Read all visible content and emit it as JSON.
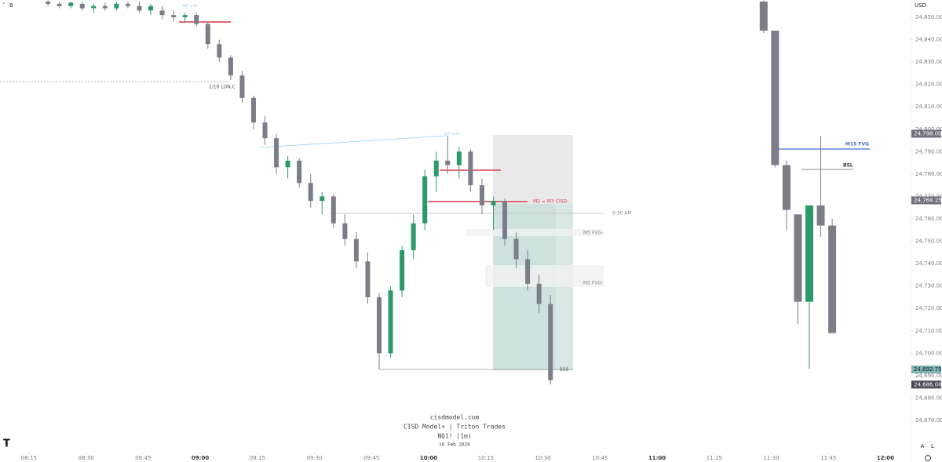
{
  "chart_data": {
    "type": "candlestick",
    "currency": "USD",
    "collapse_label": "6",
    "watermark": [
      "cisdmodel.com",
      "CISD Model+ | Triton Trades",
      "NQ1! (1m)",
      "16 Feb 2026"
    ],
    "scale_buttons": [
      "A",
      "L"
    ],
    "up_color": "#2b9a68",
    "down_color": "#7b7d88",
    "xlim": [
      487.4,
      726.6
    ],
    "ylim": [
      24661.6,
      24857.7
    ],
    "xticks": [
      {
        "value": 495,
        "label": "08:15"
      },
      {
        "value": 510,
        "label": "08:30"
      },
      {
        "value": 525,
        "label": "08:45"
      },
      {
        "value": 540,
        "label": "09:00"
      },
      {
        "value": 555,
        "label": "09:15"
      },
      {
        "value": 570,
        "label": "09:30"
      },
      {
        "value": 585,
        "label": "09:45"
      },
      {
        "value": 600,
        "label": "10:00"
      },
      {
        "value": 615,
        "label": "10:15"
      },
      {
        "value": 630,
        "label": "10:30"
      },
      {
        "value": 645,
        "label": "10:45"
      },
      {
        "value": 660,
        "label": "11:00"
      },
      {
        "value": 675,
        "label": "11:15"
      },
      {
        "value": 690,
        "label": "11:30"
      },
      {
        "value": 705,
        "label": "11:45"
      },
      {
        "value": 720,
        "label": "12:00"
      }
    ],
    "yticks": [
      {
        "value": 24670,
        "label": "24,670.00"
      },
      {
        "value": 24680,
        "label": "24,680.00"
      },
      {
        "value": 24690,
        "label": "24,690.00"
      },
      {
        "value": 24700,
        "label": "24,700.00"
      },
      {
        "value": 24710,
        "label": "24,710.00"
      },
      {
        "value": 24720,
        "label": "24,720.00"
      },
      {
        "value": 24730,
        "label": "24,730.00"
      },
      {
        "value": 24740,
        "label": "24,740.00"
      },
      {
        "value": 24750,
        "label": "24,750.00"
      },
      {
        "value": 24760,
        "label": "24,760.00"
      },
      {
        "value": 24770,
        "label": "24,770.00"
      },
      {
        "value": 24780,
        "label": "24,780.00"
      },
      {
        "value": 24790,
        "label": "24,790.00"
      },
      {
        "value": 24800,
        "label": "24,800.00"
      },
      {
        "value": 24810,
        "label": "24,810.00"
      },
      {
        "value": 24820,
        "label": "24,820.00"
      },
      {
        "value": 24830,
        "label": "24,830.00"
      },
      {
        "value": 24840,
        "label": "24,840.00"
      },
      {
        "value": 24850,
        "label": "24,850.00"
      }
    ],
    "price_tags": [
      {
        "value": 24798,
        "label": "24,798.00",
        "color": "#6e717c"
      },
      {
        "value": 24768.25,
        "label": "24,768.25",
        "color": "#6e717c"
      },
      {
        "value": 24692.75,
        "label": "24,692.75",
        "color": "#7fb5ae"
      },
      {
        "value": 24686,
        "label": "24,686.00",
        "color": "#4a4d57"
      }
    ],
    "annotations": [
      "2/16 LON.C",
      "M2 = M3 CISD-",
      "9:30 AM",
      "M5 FVG-",
      "M5 FVG-",
      "M15 FVG",
      "BSL",
      "$$$",
      "SMT w ES",
      "SMT w ES"
    ],
    "candles": {
      "x": [
        500,
        503,
        506,
        509,
        512,
        515,
        518,
        521,
        524,
        527,
        530,
        533,
        536,
        539,
        542,
        545,
        548,
        551,
        554,
        557,
        560,
        563,
        566,
        569,
        572,
        575,
        578,
        581,
        584,
        587,
        590,
        593,
        596,
        599,
        602,
        605,
        608,
        611,
        614,
        617,
        620,
        623,
        626,
        629,
        632
      ],
      "open": [
        24857,
        24856,
        24855,
        24856,
        24854,
        24855,
        24854,
        24856,
        24855,
        24853,
        24853,
        24851,
        24850,
        24851,
        24847,
        24838,
        24832,
        24824,
        24814,
        24803,
        24796,
        24783,
        24786,
        24776,
        24768,
        24770,
        24758,
        24751,
        24741,
        24725,
        24700,
        24728,
        24746,
        24758,
        24779,
        24786,
        24784,
        24790,
        24775,
        24766,
        24768,
        24751,
        24742,
        24731,
        24722
      ],
      "high": [
        24857.5,
        24857,
        24857,
        24857,
        24856,
        24856.5,
        24857,
        24857,
        24857,
        24856,
        24855,
        24853,
        24852,
        24852,
        24848,
        24840,
        24833,
        24826,
        24815,
        24806,
        24798,
        24788,
        24787,
        24780,
        24772,
        24771,
        24762,
        24754,
        24745,
        24727,
        24730,
        24748,
        24762,
        24782,
        24790,
        24797,
        24792,
        24791,
        24778,
        24770,
        24769,
        24754,
        24746,
        24735,
        24726
      ],
      "low": [
        24855,
        24854,
        24854,
        24853,
        24852,
        24853,
        24853,
        24854,
        24852,
        24851,
        24849,
        24848,
        24848,
        24846,
        24836,
        24830,
        24822,
        24812,
        24800,
        24793,
        24780,
        24778,
        24774,
        24765,
        24762,
        24756,
        24748,
        24738,
        24722,
        24693,
        24698,
        24725,
        24742,
        24755,
        24772,
        24780,
        24778,
        24772,
        24762,
        24755,
        24748,
        24738,
        24728,
        24718,
        24686
      ],
      "close": [
        24856,
        24855,
        24856.5,
        24854,
        24855,
        24854,
        24856,
        24855,
        24853,
        24855,
        24851,
        24850,
        24851,
        24847,
        24838,
        24832,
        24824,
        24814,
        24803,
        24796,
        24783,
        24786,
        24776,
        24768,
        24770,
        24758,
        24751,
        24741,
        24725,
        24700,
        24728,
        24746,
        24758,
        24779,
        24786,
        24784,
        24790,
        24775,
        24766,
        24768,
        24751,
        24742,
        24731,
        24722,
        24688
      ]
    },
    "htf_candles": {
      "x": [
        688,
        691,
        694,
        697,
        700,
        703,
        706
      ],
      "open": [
        24857,
        24844,
        24784,
        24762,
        24723,
        24766,
        24757
      ],
      "high": [
        24857.5,
        24844,
        24786,
        24762,
        24766,
        24797,
        24760
      ],
      "low": [
        24843,
        24783,
        24755,
        24713,
        24693,
        24752,
        24709
      ],
      "close": [
        24844,
        24784,
        24764,
        24723,
        24766,
        24757,
        24709
      ]
    }
  }
}
